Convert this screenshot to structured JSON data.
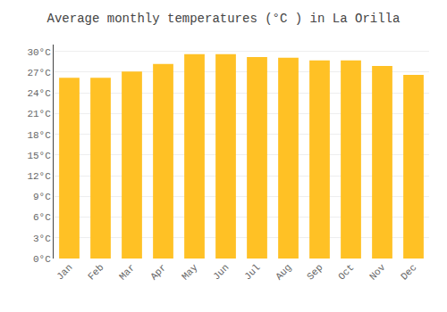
{
  "chart_data": {
    "type": "bar",
    "title": "Average monthly temperatures (°C ) in La Orilla",
    "categories": [
      "Jan",
      "Feb",
      "Mar",
      "Apr",
      "May",
      "Jun",
      "Jul",
      "Aug",
      "Sep",
      "Oct",
      "Nov",
      "Dec"
    ],
    "values": [
      26.2,
      26.2,
      27.1,
      28.2,
      29.6,
      29.6,
      29.2,
      29.1,
      28.7,
      28.7,
      27.9,
      26.6
    ],
    "color": "#FFC125",
    "ylim": [
      0,
      31
    ],
    "yticks": [
      {
        "value": 0,
        "label": "0°C"
      },
      {
        "value": 3,
        "label": "3°C"
      },
      {
        "value": 6,
        "label": "6°C"
      },
      {
        "value": 9,
        "label": "9°C"
      },
      {
        "value": 12,
        "label": "12°C"
      },
      {
        "value": 15,
        "label": "15°C"
      },
      {
        "value": 18,
        "label": "18°C"
      },
      {
        "value": 21,
        "label": "21°C"
      },
      {
        "value": 24,
        "label": "24°C"
      },
      {
        "value": 27,
        "label": "27°C"
      },
      {
        "value": 30,
        "label": "30°C"
      }
    ],
    "grid": true
  }
}
